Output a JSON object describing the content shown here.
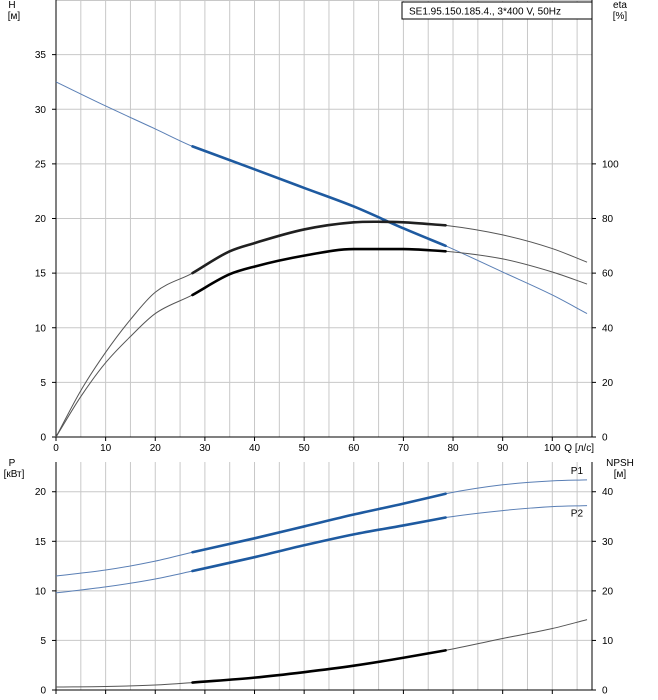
{
  "chart_data": [
    {
      "type": "line",
      "title": "SE1.95.150.185.4., 3*400 V, 50Hz",
      "xlabel": "Q [л/с]",
      "ylabel_left": [
        "H",
        "[м]"
      ],
      "ylabel_right": [
        "eta",
        "[%]"
      ],
      "xlim": [
        0,
        108
      ],
      "ylim_left": [
        0,
        40
      ],
      "ylim_right": [
        0,
        160
      ],
      "x_ticks": [
        0,
        10,
        20,
        30,
        40,
        50,
        60,
        70,
        80,
        90,
        100
      ],
      "y_ticks_left": [
        0,
        5,
        10,
        15,
        20,
        25,
        30,
        35
      ],
      "y_ticks_right": [
        0,
        20,
        40,
        60,
        80,
        100
      ],
      "grid": true,
      "series": [
        {
          "axis": "left",
          "color": "#5a7fb5",
          "bold_color": "#1e5aa0",
          "operating_range": [
            27.5,
            78.5
          ],
          "x": [
            0,
            10,
            20,
            27.5,
            40,
            50,
            60,
            70,
            78.5,
            90,
            100,
            107
          ],
          "y": [
            32.5,
            30.3,
            28.2,
            26.6,
            24.5,
            22.8,
            21.1,
            19.1,
            17.5,
            15.1,
            13.0,
            11.3
          ]
        },
        {
          "axis": "right",
          "color": "#555555",
          "bold_color": "#202020",
          "operating_range": [
            27.5,
            78.5
          ],
          "x": [
            0,
            5,
            10,
            15,
            20,
            27.5,
            35,
            40,
            50,
            60,
            66,
            70,
            78.5,
            90,
            100,
            107
          ],
          "y": [
            0,
            17,
            31,
            43,
            53,
            60,
            68,
            71,
            76,
            78.6,
            78.8,
            78.6,
            77.5,
            74,
            69,
            64
          ]
        },
        {
          "axis": "left",
          "color": "#555555",
          "bold_color": "#000000",
          "operating_range": [
            27.5,
            78.5
          ],
          "x": [
            0,
            5,
            10,
            15,
            20,
            27.5,
            35,
            40,
            50,
            60,
            66,
            70,
            78.5,
            90,
            100,
            107
          ],
          "y": [
            0,
            3.7,
            6.8,
            9.2,
            11.3,
            13.0,
            14.9,
            15.6,
            16.6,
            17.2,
            17.2,
            17.2,
            17.0,
            16.3,
            15.1,
            14.0
          ]
        }
      ]
    },
    {
      "type": "line",
      "xlim": [
        0,
        108
      ],
      "ylabel_left": [
        "P",
        "[кВт]"
      ],
      "ylabel_right": [
        "NPSH",
        "[м]"
      ],
      "ylim_left": [
        0,
        23
      ],
      "ylim_right": [
        0,
        46
      ],
      "y_ticks_left": [
        0,
        5,
        10,
        15,
        20
      ],
      "y_ticks_right": [
        0,
        10,
        20,
        30,
        40
      ],
      "grid": true,
      "series": [
        {
          "name": "P1",
          "axis": "left",
          "color": "#5a7fb5",
          "bold_color": "#1e5aa0",
          "operating_range": [
            27.5,
            78.5
          ],
          "x": [
            0,
            10,
            20,
            27.5,
            40,
            50,
            60,
            70,
            78.5,
            90,
            100,
            107
          ],
          "y": [
            11.5,
            12.1,
            13.0,
            13.9,
            15.3,
            16.5,
            17.7,
            18.8,
            19.8,
            20.7,
            21.1,
            21.2
          ]
        },
        {
          "name": "P2",
          "axis": "left",
          "color": "#5a7fb5",
          "bold_color": "#1e5aa0",
          "operating_range": [
            27.5,
            78.5
          ],
          "x": [
            0,
            10,
            20,
            27.5,
            40,
            50,
            60,
            70,
            78.5,
            90,
            100,
            107
          ],
          "y": [
            9.8,
            10.4,
            11.2,
            12.0,
            13.4,
            14.6,
            15.7,
            16.6,
            17.4,
            18.1,
            18.5,
            18.6
          ]
        },
        {
          "axis": "right",
          "color": "#555555",
          "bold_color": "#000000",
          "operating_range": [
            27.5,
            78.5
          ],
          "x": [
            0,
            10,
            20,
            27.5,
            40,
            50,
            60,
            70,
            78.5,
            90,
            100,
            107
          ],
          "y": [
            0.6,
            0.7,
            1.0,
            1.5,
            2.5,
            3.6,
            4.9,
            6.5,
            8.0,
            10.4,
            12.4,
            14.2
          ]
        }
      ]
    }
  ]
}
